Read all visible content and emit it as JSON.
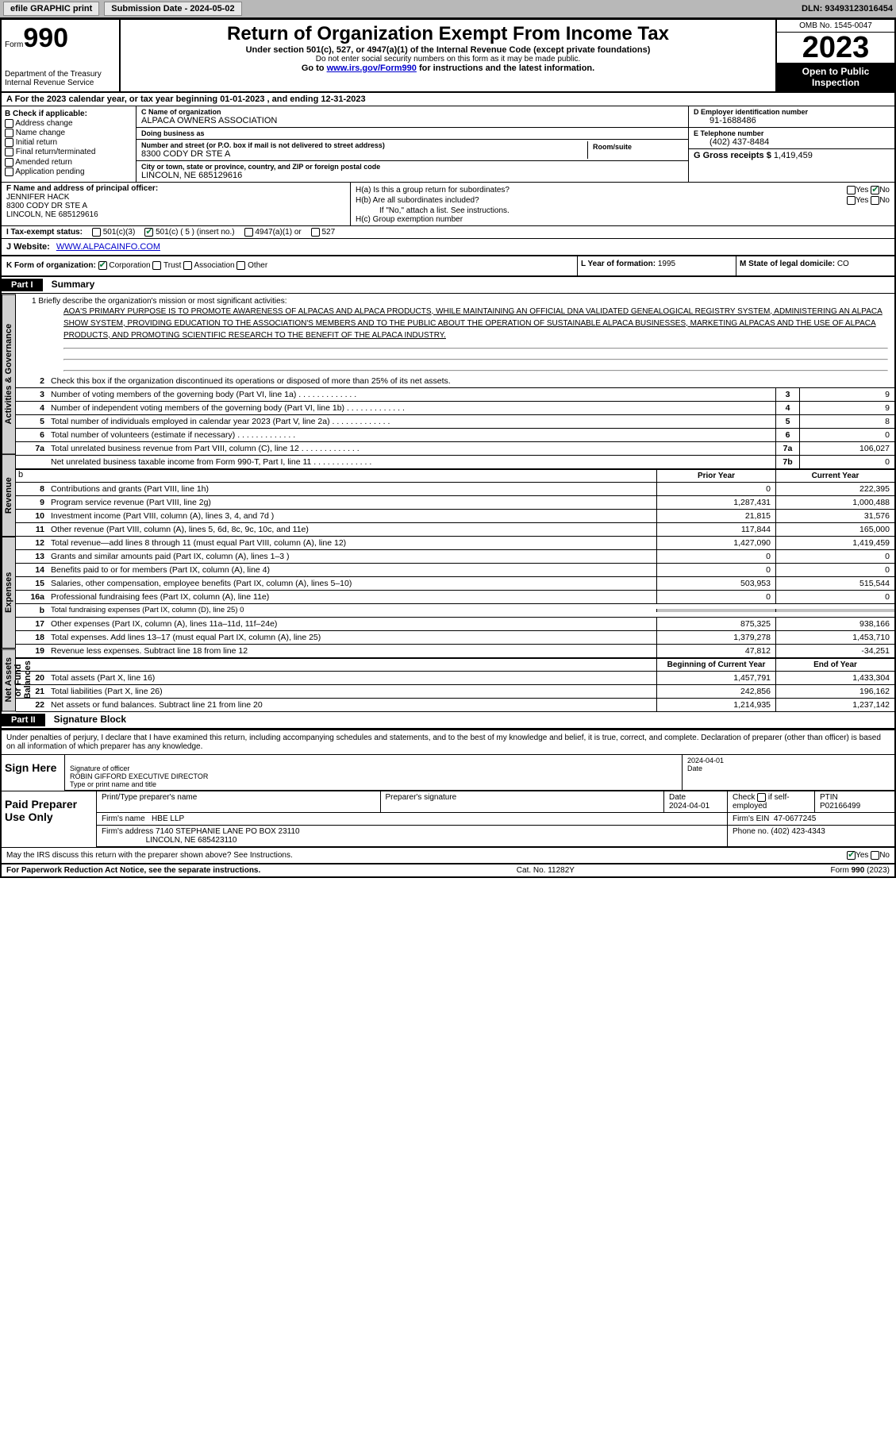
{
  "toolbar": {
    "efile": "efile GRAPHIC print",
    "submission": "Submission Date - 2024-05-02",
    "dln": "DLN: 93493123016454"
  },
  "header": {
    "form": "Form",
    "form_num": "990",
    "dept": "Department of the Treasury Internal Revenue Service",
    "title": "Return of Organization Exempt From Income Tax",
    "subtitle": "Under section 501(c), 527, or 4947(a)(1) of the Internal Revenue Code (except private foundations)",
    "note": "Do not enter social security numbers on this form as it may be made public.",
    "goto": "Go to www.irs.gov/Form990 for instructions and the latest information.",
    "goto_url": "www.irs.gov/Form990",
    "omb": "OMB No. 1545-0047",
    "year": "2023",
    "inspect": "Open to Public Inspection"
  },
  "sec_a": "A For the 2023 calendar year, or tax year beginning 01-01-2023    , and ending 12-31-2023",
  "sec_b": {
    "label": "B Check if applicable:",
    "items": [
      "Address change",
      "Name change",
      "Initial return",
      "Final return/terminated",
      "Amended return",
      "Application pending"
    ]
  },
  "sec_c": {
    "name_lbl": "C Name of organization",
    "name": "ALPACA OWNERS ASSOCIATION",
    "dba_lbl": "Doing business as",
    "dba": "",
    "street_lbl": "Number and street (or P.O. box if mail is not delivered to street address)",
    "street": "8300 CODY DR STE A",
    "room_lbl": "Room/suite",
    "city_lbl": "City or town, state or province, country, and ZIP or foreign postal code",
    "city": "LINCOLN, NE  685129616"
  },
  "sec_d": {
    "lbl": "D Employer identification number",
    "val": "91-1688486"
  },
  "sec_e": {
    "lbl": "E Telephone number",
    "val": "(402) 437-8484"
  },
  "sec_g": {
    "lbl": "G Gross receipts $",
    "val": "1,419,459"
  },
  "sec_f": {
    "lbl": "F Name and address of principal officer:",
    "name": "JENNIFER HACK",
    "street": "8300 CODY DR STE A",
    "city": "LINCOLN, NE  685129616"
  },
  "sec_h": {
    "a": "H(a)  Is this a group return for subordinates?",
    "b": "H(b)  Are all subordinates included?",
    "bnote": "If \"No,\" attach a list. See instructions.",
    "c": "H(c)  Group exemption number",
    "yes": "Yes",
    "no": "No"
  },
  "sec_i": {
    "lbl": "I   Tax-exempt status:",
    "opts": [
      "501(c)(3)",
      "501(c) ( 5 ) (insert no.)",
      "4947(a)(1) or",
      "527"
    ]
  },
  "sec_j": {
    "lbl": "J   Website:",
    "val": "WWW.ALPACAINFO.COM"
  },
  "sec_k": {
    "lbl": "K Form of organization:",
    "opts": [
      "Corporation",
      "Trust",
      "Association",
      "Other"
    ]
  },
  "sec_l": {
    "lbl": "L Year of formation:",
    "val": "1995"
  },
  "sec_m": {
    "lbl": "M State of legal domicile:",
    "val": "CO"
  },
  "part1": {
    "hdr": "Part I",
    "title": "Summary"
  },
  "mission": {
    "lbl": "1   Briefly describe the organization's mission or most significant activities:",
    "txt": "AOA'S PRIMARY PURPOSE IS TO PROMOTE AWARENESS OF ALPACAS AND ALPACA PRODUCTS, WHILE MAINTAINING AN OFFICIAL DNA VALIDATED GENEALOGICAL REGISTRY SYSTEM, ADMINISTERING AN ALPACA SHOW SYSTEM, PROVIDING EDUCATION TO THE ASSOCIATION'S MEMBERS AND TO THE PUBLIC ABOUT THE OPERATION OF SUSTAINABLE ALPACA BUSINESSES, MARKETING ALPACAS AND THE USE OF ALPACA PRODUCTS, AND PROMOTING SCIENTIFIC RESEARCH TO THE BENEFIT OF THE ALPACA INDUSTRY."
  },
  "tabs": {
    "ag": "Activities & Governance",
    "rev": "Revenue",
    "exp": "Expenses",
    "na": "Net Assets or Fund Balances"
  },
  "lines_ag": [
    {
      "n": "2",
      "d": "Check this box     if the organization discontinued its operations or disposed of more than 25% of its net assets."
    },
    {
      "n": "3",
      "d": "Number of voting members of the governing body (Part VI, line 1a)",
      "bn": "3",
      "v": "9"
    },
    {
      "n": "4",
      "d": "Number of independent voting members of the governing body (Part VI, line 1b)",
      "bn": "4",
      "v": "9"
    },
    {
      "n": "5",
      "d": "Total number of individuals employed in calendar year 2023 (Part V, line 2a)",
      "bn": "5",
      "v": "8"
    },
    {
      "n": "6",
      "d": "Total number of volunteers (estimate if necessary)",
      "bn": "6",
      "v": "0"
    },
    {
      "n": "7a",
      "d": "Total unrelated business revenue from Part VIII, column (C), line 12",
      "bn": "7a",
      "v": "106,027"
    },
    {
      "n": "",
      "d": "Net unrelated business taxable income from Form 990-T, Part I, line 11",
      "bn": "7b",
      "v": "0"
    }
  ],
  "col_headers": {
    "py": "Prior Year",
    "cy": "Current Year"
  },
  "lines_rev": [
    {
      "n": "8",
      "d": "Contributions and grants (Part VIII, line 1h)",
      "py": "0",
      "cy": "222,395"
    },
    {
      "n": "9",
      "d": "Program service revenue (Part VIII, line 2g)",
      "py": "1,287,431",
      "cy": "1,000,488"
    },
    {
      "n": "10",
      "d": "Investment income (Part VIII, column (A), lines 3, 4, and 7d )",
      "py": "21,815",
      "cy": "31,576"
    },
    {
      "n": "11",
      "d": "Other revenue (Part VIII, column (A), lines 5, 6d, 8c, 9c, 10c, and 11e)",
      "py": "117,844",
      "cy": "165,000"
    },
    {
      "n": "12",
      "d": "Total revenue—add lines 8 through 11 (must equal Part VIII, column (A), line 12)",
      "py": "1,427,090",
      "cy": "1,419,459"
    }
  ],
  "lines_exp": [
    {
      "n": "13",
      "d": "Grants and similar amounts paid (Part IX, column (A), lines 1–3 )",
      "py": "0",
      "cy": "0"
    },
    {
      "n": "14",
      "d": "Benefits paid to or for members (Part IX, column (A), line 4)",
      "py": "0",
      "cy": "0"
    },
    {
      "n": "15",
      "d": "Salaries, other compensation, employee benefits (Part IX, column (A), lines 5–10)",
      "py": "503,953",
      "cy": "515,544"
    },
    {
      "n": "16a",
      "d": "Professional fundraising fees (Part IX, column (A), line 11e)",
      "py": "0",
      "cy": "0"
    },
    {
      "n": "b",
      "d": "Total fundraising expenses (Part IX, column (D), line 25) 0",
      "shaded": true
    },
    {
      "n": "17",
      "d": "Other expenses (Part IX, column (A), lines 11a–11d, 11f–24e)",
      "py": "875,325",
      "cy": "938,166"
    },
    {
      "n": "18",
      "d": "Total expenses. Add lines 13–17 (must equal Part IX, column (A), line 25)",
      "py": "1,379,278",
      "cy": "1,453,710"
    },
    {
      "n": "19",
      "d": "Revenue less expenses. Subtract line 18 from line 12",
      "py": "47,812",
      "cy": "-34,251"
    }
  ],
  "col_headers2": {
    "py": "Beginning of Current Year",
    "cy": "End of Year"
  },
  "lines_na": [
    {
      "n": "20",
      "d": "Total assets (Part X, line 16)",
      "py": "1,457,791",
      "cy": "1,433,304"
    },
    {
      "n": "21",
      "d": "Total liabilities (Part X, line 26)",
      "py": "242,856",
      "cy": "196,162"
    },
    {
      "n": "22",
      "d": "Net assets or fund balances. Subtract line 21 from line 20",
      "py": "1,214,935",
      "cy": "1,237,142"
    }
  ],
  "part2": {
    "hdr": "Part II",
    "title": "Signature Block"
  },
  "declare": "Under penalties of perjury, I declare that I have examined this return, including accompanying schedules and statements, and to the best of my knowledge and belief, it is true, correct, and complete. Declaration of preparer (other than officer) is based on all information of which preparer has any knowledge.",
  "sign": {
    "lbl": "Sign Here",
    "sig_lbl": "Signature of officer",
    "date_lbl": "Date",
    "date": "2024-04-01",
    "name": "ROBIN GIFFORD  EXECUTIVE DIRECTOR",
    "name_lbl": "Type or print name and title"
  },
  "prep": {
    "lbl": "Paid Preparer Use Only",
    "h": [
      "Print/Type preparer's name",
      "Preparer's signature",
      "Date",
      "Check      if self-employed",
      "PTIN"
    ],
    "date": "2024-04-01",
    "ptin": "P02166499",
    "firm_lbl": "Firm's name",
    "firm": "HBE LLP",
    "ein_lbl": "Firm's EIN",
    "ein": "47-0677245",
    "addr_lbl": "Firm's address",
    "addr": "7140 STEPHANIE LANE PO BOX 23110",
    "addr2": "LINCOLN, NE  685423110",
    "phone_lbl": "Phone no.",
    "phone": "(402) 423-4343"
  },
  "discuss": "May the IRS discuss this return with the preparer shown above? See Instructions.",
  "footer": {
    "pra": "For Paperwork Reduction Act Notice, see the separate instructions.",
    "cat": "Cat. No. 11282Y",
    "form": "Form 990 (2023)"
  }
}
